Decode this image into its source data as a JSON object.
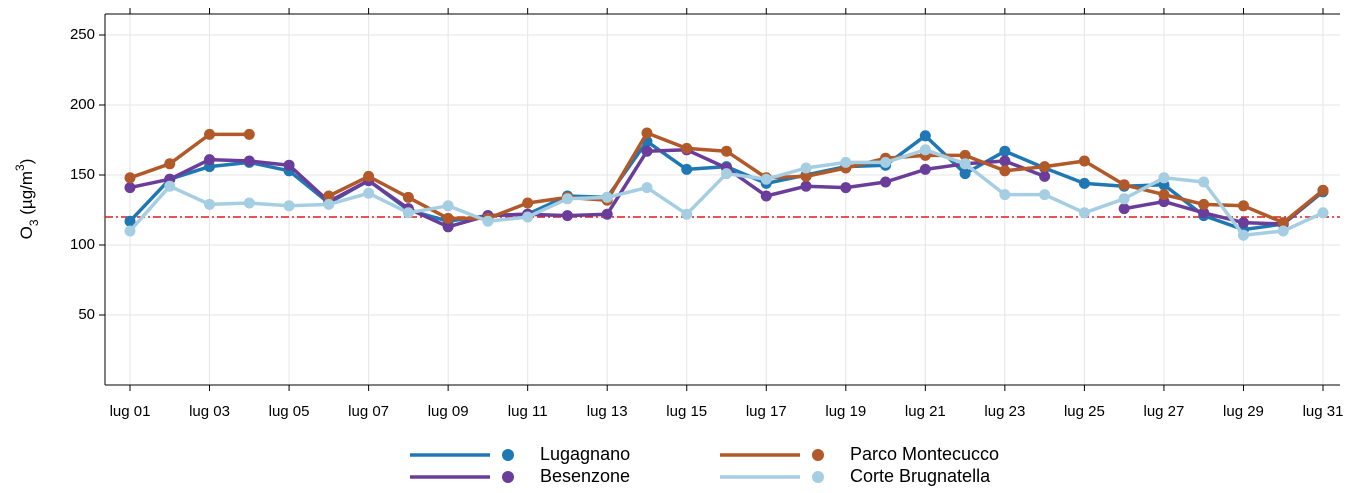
{
  "chart_data": {
    "type": "line",
    "y_label": {
      "base": "O",
      "sub": "3",
      "unit": " (µg/m",
      "sup": "3",
      "close": ")"
    },
    "categories": [
      "lug 01",
      null,
      "lug 03",
      null,
      "lug 05",
      null,
      "lug 07",
      null,
      "lug 09",
      null,
      "lug 11",
      null,
      "lug 13",
      null,
      "lug 15",
      null,
      "lug 17",
      null,
      "lug 19",
      null,
      "lug 21",
      null,
      "lug 23",
      null,
      "lug 25",
      null,
      "lug 27",
      null,
      "lug 29",
      null,
      "lug 31"
    ],
    "series": [
      {
        "name": "Lugagnano",
        "color": "#1f78b4",
        "values": [
          117,
          147,
          156,
          159,
          153,
          130,
          146,
          125,
          117,
          121,
          122,
          135,
          134,
          174,
          154,
          156,
          144,
          150,
          156,
          157,
          178,
          151,
          167,
          155,
          144,
          142,
          143,
          121,
          111,
          115,
          138
        ]
      },
      {
        "name": "Besenzone",
        "color": "#6a3d9a",
        "values": [
          141,
          147,
          161,
          160,
          157,
          131,
          146,
          126,
          113,
          121,
          122,
          121,
          122,
          167,
          168,
          155,
          135,
          142,
          141,
          145,
          154,
          158,
          160,
          149,
          null,
          126,
          131,
          123,
          116,
          115,
          139
        ]
      },
      {
        "name": "Parco Montecucco",
        "color": "#b15928",
        "values": [
          148,
          158,
          179,
          179,
          null,
          135,
          149,
          134,
          119,
          119,
          130,
          134,
          132,
          180,
          169,
          167,
          148,
          149,
          155,
          162,
          164,
          164,
          153,
          156,
          160,
          143,
          136,
          129,
          128,
          116,
          139
        ]
      },
      {
        "name": "Corte Brugnatella",
        "color": "#a6cee3",
        "values": [
          110,
          142,
          129,
          130,
          128,
          129,
          137,
          123,
          128,
          117,
          120,
          133,
          134,
          141,
          122,
          151,
          147,
          155,
          159,
          159,
          168,
          158,
          136,
          136,
          123,
          133,
          148,
          145,
          107,
          110,
          123
        ]
      }
    ],
    "threshold": 120,
    "threshold_color": "#e31a1c",
    "ylim": [
      0,
      265
    ],
    "yticks": [
      50,
      100,
      150,
      200,
      250
    ],
    "grid": true,
    "legend": "bottom"
  }
}
